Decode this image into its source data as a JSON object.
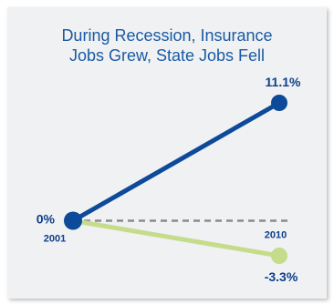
{
  "chart_data": {
    "type": "line",
    "title_lines": [
      "During Recession, Insurance",
      "Jobs Grew, State Jobs Fell"
    ],
    "x": [
      "2001",
      "2010"
    ],
    "series": [
      {
        "values": [
          0,
          11.1
        ],
        "color": "#0d4a9a",
        "end_label": "11.1%"
      },
      {
        "values": [
          0,
          -3.3
        ],
        "color": "#c5dc8a",
        "end_label": "-3.3%"
      }
    ],
    "start_label": "0%",
    "baseline": {
      "style": "dashed",
      "color": "#8c8c8c"
    },
    "label_color": "#0d3f8c",
    "ylim": [
      -3.3,
      11.1
    ]
  }
}
